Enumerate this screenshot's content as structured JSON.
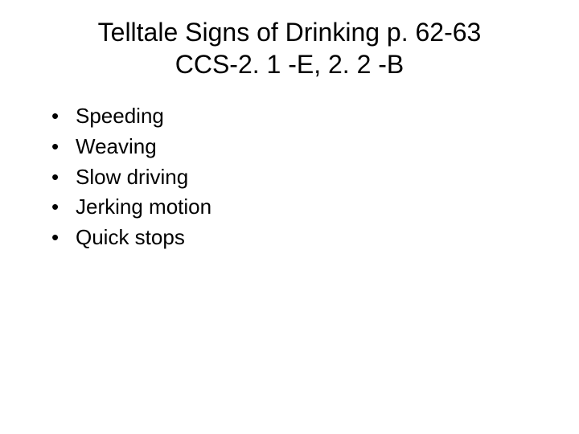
{
  "slide": {
    "title_line1": "Telltale Signs of Drinking p. 62-63",
    "title_line2": "CCS-2. 1 -E, 2. 2 -B",
    "bullets": [
      {
        "text": "Speeding"
      },
      {
        "text": "Weaving"
      },
      {
        "text": "Slow driving"
      },
      {
        "text": "Jerking motion"
      },
      {
        "text": "Quick stops"
      }
    ],
    "bullet_marker": "•",
    "colors": {
      "background": "#ffffff",
      "text": "#000000"
    },
    "typography": {
      "title_fontsize": 32,
      "body_fontsize": 26,
      "font_family": "Arial"
    }
  }
}
